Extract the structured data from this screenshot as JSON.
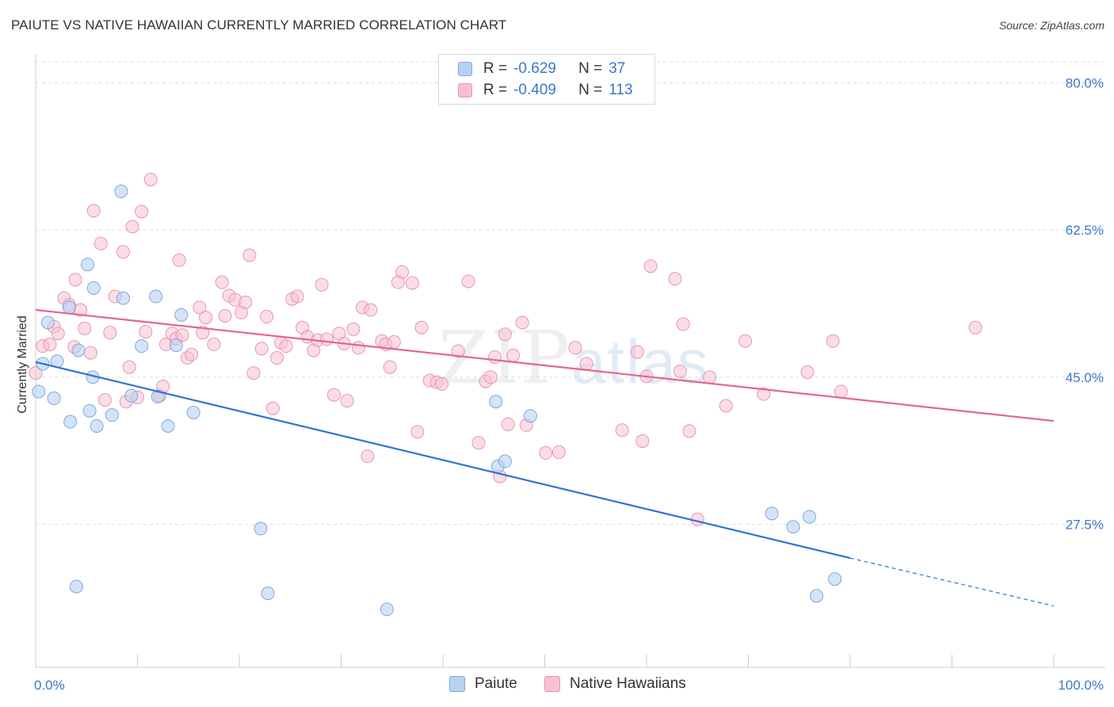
{
  "header": {
    "title": "PAIUTE VS NATIVE HAWAIIAN CURRENTLY MARRIED CORRELATION CHART",
    "source": "Source: ZipAtlas.com"
  },
  "watermark": {
    "zip": "ZIP",
    "atlas": "atlas"
  },
  "legend": {
    "rows": [
      {
        "r_label": "R =",
        "r_value": "-0.629",
        "n_label": "N =",
        "n_value": "37"
      },
      {
        "r_label": "R =",
        "r_value": "-0.409",
        "n_label": "N =",
        "n_value": "113"
      }
    ]
  },
  "chart_data": {
    "type": "scatter",
    "title": "PAIUTE VS NATIVE HAWAIIAN CURRENTLY MARRIED CORRELATION CHART",
    "xlabel": "",
    "ylabel": "Currently Married",
    "xlim": [
      0,
      100
    ],
    "ylim": [
      10.5,
      82.5
    ],
    "x_tick_labels": [
      "0.0%",
      "100.0%"
    ],
    "y_ticks": [
      27.5,
      45.0,
      62.5,
      80.0
    ],
    "y_tick_labels": [
      "27.5%",
      "45.0%",
      "62.5%",
      "80.0%"
    ],
    "grid": true,
    "colors": {
      "paiute_fill": "#b8d2f4",
      "paiute_stroke": "#7ea7dc",
      "paiute_line": "#2f73d2",
      "hawaiian_fill": "#f7c1d1",
      "hawaiian_stroke": "#e895b0",
      "hawaiian_line": "#e46592",
      "tick_label": "#3a78c9"
    },
    "series": [
      {
        "name": "Paiute",
        "r": -0.629,
        "n": 37,
        "trend": {
          "x0": 0,
          "y0": 46.8,
          "x1": 80,
          "y1": 23.5,
          "dash_to_x": 100,
          "dash_to_y": 17.8
        },
        "points": [
          [
            0.3,
            43.3
          ],
          [
            0.7,
            46.6
          ],
          [
            1.2,
            51.5
          ],
          [
            1.8,
            42.5
          ],
          [
            2.1,
            46.9
          ],
          [
            3.3,
            53.3
          ],
          [
            3.4,
            39.7
          ],
          [
            4.0,
            20.1
          ],
          [
            4.2,
            48.2
          ],
          [
            5.1,
            58.4
          ],
          [
            5.3,
            41.0
          ],
          [
            5.6,
            45.0
          ],
          [
            5.7,
            55.6
          ],
          [
            6.0,
            39.2
          ],
          [
            7.5,
            40.5
          ],
          [
            8.4,
            67.1
          ],
          [
            8.6,
            54.4
          ],
          [
            9.4,
            42.8
          ],
          [
            10.4,
            48.7
          ],
          [
            11.8,
            54.6
          ],
          [
            12.0,
            42.7
          ],
          [
            13.0,
            39.2
          ],
          [
            13.8,
            48.8
          ],
          [
            14.3,
            52.4
          ],
          [
            15.5,
            40.8
          ],
          [
            22.1,
            27.0
          ],
          [
            22.8,
            19.3
          ],
          [
            34.5,
            17.4
          ],
          [
            45.2,
            42.1
          ],
          [
            45.4,
            34.4
          ],
          [
            46.1,
            35.0
          ],
          [
            48.6,
            40.4
          ],
          [
            72.3,
            28.8
          ],
          [
            74.4,
            27.2
          ],
          [
            76.0,
            28.4
          ],
          [
            76.7,
            19.0
          ],
          [
            78.5,
            21.0
          ]
        ]
      },
      {
        "name": "Native Hawaiians",
        "r": -0.409,
        "n": 113,
        "trend": {
          "x0": 0,
          "y0": 53.0,
          "x1": 100,
          "y1": 39.8
        },
        "points": [
          [
            0.0,
            45.5
          ],
          [
            0.7,
            48.7
          ],
          [
            1.4,
            48.9
          ],
          [
            1.8,
            51.0
          ],
          [
            2.2,
            50.2
          ],
          [
            2.8,
            54.4
          ],
          [
            3.3,
            53.6
          ],
          [
            3.8,
            48.6
          ],
          [
            3.9,
            56.6
          ],
          [
            4.4,
            53.0
          ],
          [
            4.8,
            50.8
          ],
          [
            5.4,
            47.9
          ],
          [
            5.7,
            64.8
          ],
          [
            6.4,
            60.9
          ],
          [
            6.8,
            42.3
          ],
          [
            7.3,
            50.3
          ],
          [
            7.8,
            54.6
          ],
          [
            8.6,
            59.9
          ],
          [
            8.9,
            42.1
          ],
          [
            9.2,
            46.2
          ],
          [
            9.5,
            62.9
          ],
          [
            10.0,
            42.6
          ],
          [
            10.4,
            64.7
          ],
          [
            10.8,
            50.4
          ],
          [
            11.3,
            68.5
          ],
          [
            12.2,
            42.8
          ],
          [
            12.5,
            43.9
          ],
          [
            12.8,
            48.9
          ],
          [
            13.4,
            50.2
          ],
          [
            13.8,
            49.6
          ],
          [
            14.1,
            58.9
          ],
          [
            14.4,
            50.0
          ],
          [
            14.9,
            47.3
          ],
          [
            15.3,
            47.7
          ],
          [
            16.1,
            53.3
          ],
          [
            16.4,
            50.3
          ],
          [
            16.7,
            52.1
          ],
          [
            17.5,
            48.9
          ],
          [
            18.3,
            56.3
          ],
          [
            18.6,
            52.3
          ],
          [
            19.0,
            54.7
          ],
          [
            19.6,
            54.2
          ],
          [
            20.2,
            52.7
          ],
          [
            20.6,
            53.9
          ],
          [
            21.0,
            59.5
          ],
          [
            21.4,
            45.5
          ],
          [
            22.2,
            48.4
          ],
          [
            22.7,
            52.2
          ],
          [
            23.3,
            41.3
          ],
          [
            23.7,
            47.3
          ],
          [
            24.1,
            49.1
          ],
          [
            24.6,
            48.7
          ],
          [
            25.2,
            54.3
          ],
          [
            25.7,
            54.6
          ],
          [
            26.2,
            50.9
          ],
          [
            26.7,
            49.8
          ],
          [
            27.3,
            48.2
          ],
          [
            27.7,
            49.4
          ],
          [
            28.1,
            56.0
          ],
          [
            28.6,
            49.5
          ],
          [
            29.3,
            42.9
          ],
          [
            29.8,
            50.2
          ],
          [
            30.3,
            49.0
          ],
          [
            30.6,
            42.2
          ],
          [
            31.2,
            50.7
          ],
          [
            31.7,
            48.5
          ],
          [
            32.1,
            53.3
          ],
          [
            32.6,
            35.6
          ],
          [
            32.9,
            53.0
          ],
          [
            34.0,
            49.3
          ],
          [
            34.4,
            48.9
          ],
          [
            34.8,
            46.2
          ],
          [
            35.2,
            49.2
          ],
          [
            35.6,
            56.3
          ],
          [
            36.0,
            57.5
          ],
          [
            37.0,
            56.2
          ],
          [
            37.5,
            38.5
          ],
          [
            37.9,
            50.9
          ],
          [
            38.7,
            44.6
          ],
          [
            39.4,
            44.4
          ],
          [
            39.9,
            44.2
          ],
          [
            41.5,
            48.1
          ],
          [
            42.5,
            56.4
          ],
          [
            43.5,
            37.2
          ],
          [
            44.2,
            44.5
          ],
          [
            44.7,
            45.0
          ],
          [
            45.1,
            47.4
          ],
          [
            45.6,
            33.2
          ],
          [
            46.1,
            50.1
          ],
          [
            46.4,
            39.4
          ],
          [
            46.9,
            47.6
          ],
          [
            47.8,
            51.5
          ],
          [
            48.2,
            39.3
          ],
          [
            50.1,
            36.0
          ],
          [
            51.4,
            36.1
          ],
          [
            53.0,
            48.5
          ],
          [
            54.1,
            46.6
          ],
          [
            57.6,
            38.7
          ],
          [
            59.1,
            48.0
          ],
          [
            59.6,
            37.4
          ],
          [
            60.0,
            45.1
          ],
          [
            60.4,
            58.2
          ],
          [
            62.8,
            56.7
          ],
          [
            63.3,
            45.7
          ],
          [
            63.6,
            51.3
          ],
          [
            64.2,
            38.6
          ],
          [
            65.0,
            28.1
          ],
          [
            66.2,
            45.0
          ],
          [
            67.8,
            41.6
          ],
          [
            69.7,
            49.3
          ],
          [
            71.5,
            43.0
          ],
          [
            75.8,
            45.6
          ],
          [
            78.3,
            49.3
          ],
          [
            79.1,
            43.3
          ],
          [
            92.3,
            50.9
          ]
        ]
      }
    ]
  }
}
